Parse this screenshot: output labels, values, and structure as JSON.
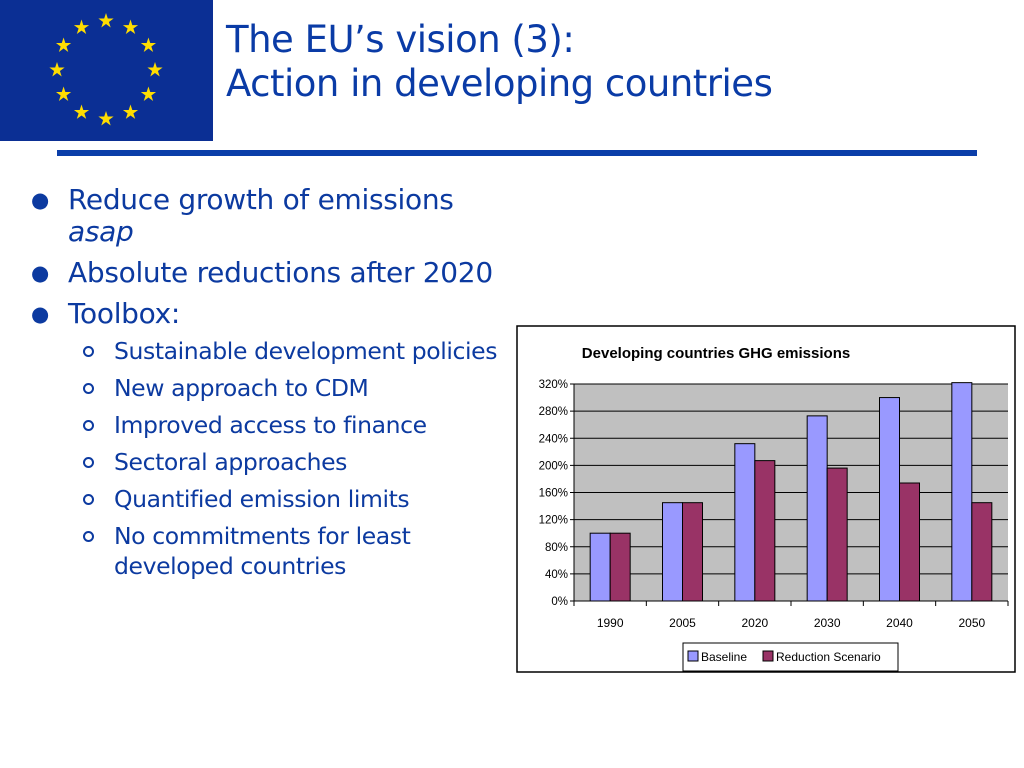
{
  "slide": {
    "title_line1": "The EU’s vision (3):",
    "title_line2": "Action in developing countries"
  },
  "bullets": [
    {
      "text": "Reduce growth of emissions",
      "em": "asap"
    },
    {
      "text": "Absolute reductions after 2020"
    },
    {
      "text": "Toolbox:"
    }
  ],
  "toolbox": [
    "Sustainable development policies",
    "New approach to CDM",
    "Improved access to finance",
    "Sectoral approaches",
    "Quantified emission limits",
    "No commitments for least developed countries"
  ],
  "colors": {
    "title": "#0a3ba6",
    "text": "#0c3aa0",
    "flag_blue": "#0b2f94",
    "flag_star": "#ffdd00",
    "plot_bg": "#c0c0c0",
    "baseline": "#9999ff",
    "reduction": "#993366"
  },
  "chart_data": {
    "type": "bar",
    "title": "Developing countries GHG emissions",
    "categories": [
      "1990",
      "2005",
      "2020",
      "2030",
      "2040",
      "2050"
    ],
    "series": [
      {
        "name": "Baseline",
        "values": [
          100,
          145,
          232,
          273,
          300,
          322
        ]
      },
      {
        "name": "Reduction Scenario",
        "values": [
          100,
          145,
          207,
          196,
          174,
          145
        ]
      }
    ],
    "ylim": [
      0,
      320
    ],
    "yticks": [
      "0%",
      "40%",
      "80%",
      "120%",
      "160%",
      "200%",
      "240%",
      "280%",
      "320%"
    ],
    "grid": true,
    "legend_position": "bottom"
  }
}
